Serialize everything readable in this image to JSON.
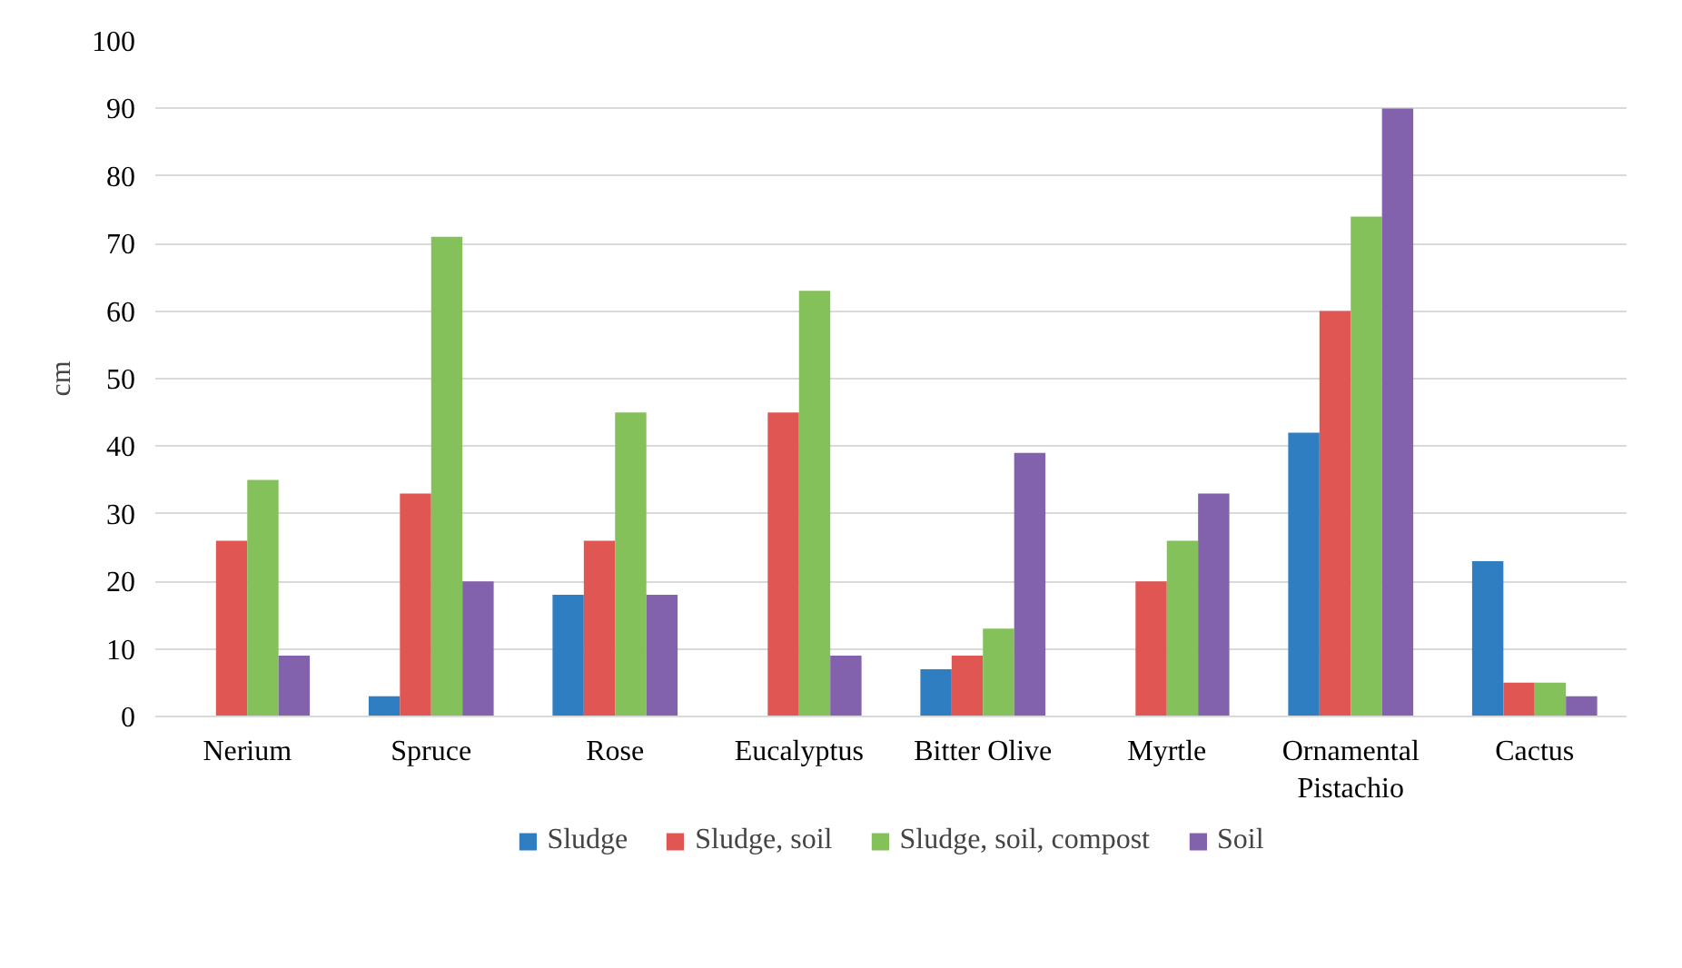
{
  "chart_data": {
    "type": "bar",
    "ylabel": "cm",
    "categories": [
      "Nerium",
      "Spruce",
      "Rose",
      "Eucalyptus",
      "Bitter Olive",
      "Myrtle",
      "Ornamental Pistachio",
      "Cactus"
    ],
    "series": [
      {
        "name": "Sludge",
        "color": "#2e7ec1",
        "values": [
          0,
          3,
          18,
          0,
          7,
          0,
          42,
          23
        ]
      },
      {
        "name": "Sludge, soil",
        "color": "#e05652",
        "values": [
          26,
          33,
          26,
          45,
          9,
          20,
          60,
          5
        ]
      },
      {
        "name": "Sludge, soil, compost",
        "color": "#84c15a",
        "values": [
          35,
          71,
          45,
          63,
          13,
          26,
          74,
          5
        ]
      },
      {
        "name": "Soil",
        "color": "#8262ad",
        "values": [
          9,
          20,
          18,
          9,
          39,
          33,
          90,
          3
        ]
      }
    ],
    "ylim": [
      0,
      100
    ],
    "yticks": [
      0,
      10,
      20,
      30,
      40,
      50,
      60,
      70,
      80,
      90,
      100
    ],
    "grid": "y",
    "legend": "bottom"
  }
}
